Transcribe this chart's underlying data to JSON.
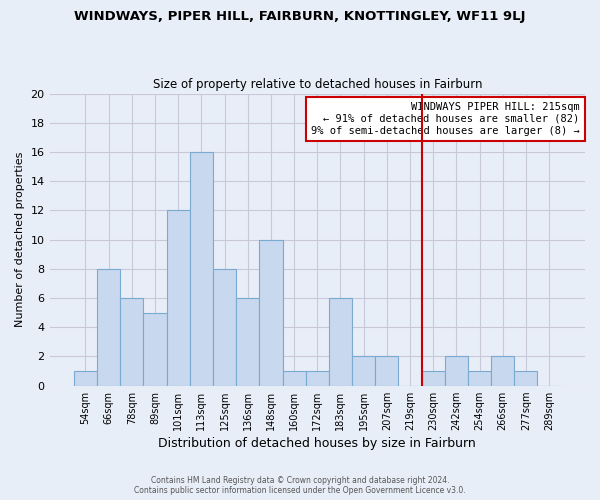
{
  "title": "WINDWAYS, PIPER HILL, FAIRBURN, KNOTTINGLEY, WF11 9LJ",
  "subtitle": "Size of property relative to detached houses in Fairburn",
  "xlabel": "Distribution of detached houses by size in Fairburn",
  "ylabel": "Number of detached properties",
  "footer_line1": "Contains HM Land Registry data © Crown copyright and database right 2024.",
  "footer_line2": "Contains public sector information licensed under the Open Government Licence v3.0.",
  "bin_labels": [
    "54sqm",
    "66sqm",
    "78sqm",
    "89sqm",
    "101sqm",
    "113sqm",
    "125sqm",
    "136sqm",
    "148sqm",
    "160sqm",
    "172sqm",
    "183sqm",
    "195sqm",
    "207sqm",
    "219sqm",
    "230sqm",
    "242sqm",
    "254sqm",
    "266sqm",
    "277sqm",
    "289sqm"
  ],
  "bar_heights": [
    1,
    8,
    6,
    5,
    12,
    16,
    8,
    6,
    10,
    1,
    1,
    6,
    2,
    2,
    0,
    1,
    2,
    1,
    2,
    1,
    0
  ],
  "bar_color": "#c8d8ee",
  "bar_edgecolor": "#7aaad0",
  "vline_x_index": 14,
  "vline_color": "#cc0000",
  "annotation_title": "WINDWAYS PIPER HILL: 215sqm",
  "annotation_line1": "← 91% of detached houses are smaller (82)",
  "annotation_line2": "9% of semi-detached houses are larger (8) →",
  "annotation_box_facecolor": "#ffffff",
  "annotation_box_edgecolor": "#cc0000",
  "ylim": [
    0,
    20
  ],
  "yticks": [
    0,
    2,
    4,
    6,
    8,
    10,
    12,
    14,
    16,
    18,
    20
  ],
  "background_color": "#e8eef8",
  "plot_bg_color": "#e8eef8",
  "grid_color": "#c8c8d8"
}
